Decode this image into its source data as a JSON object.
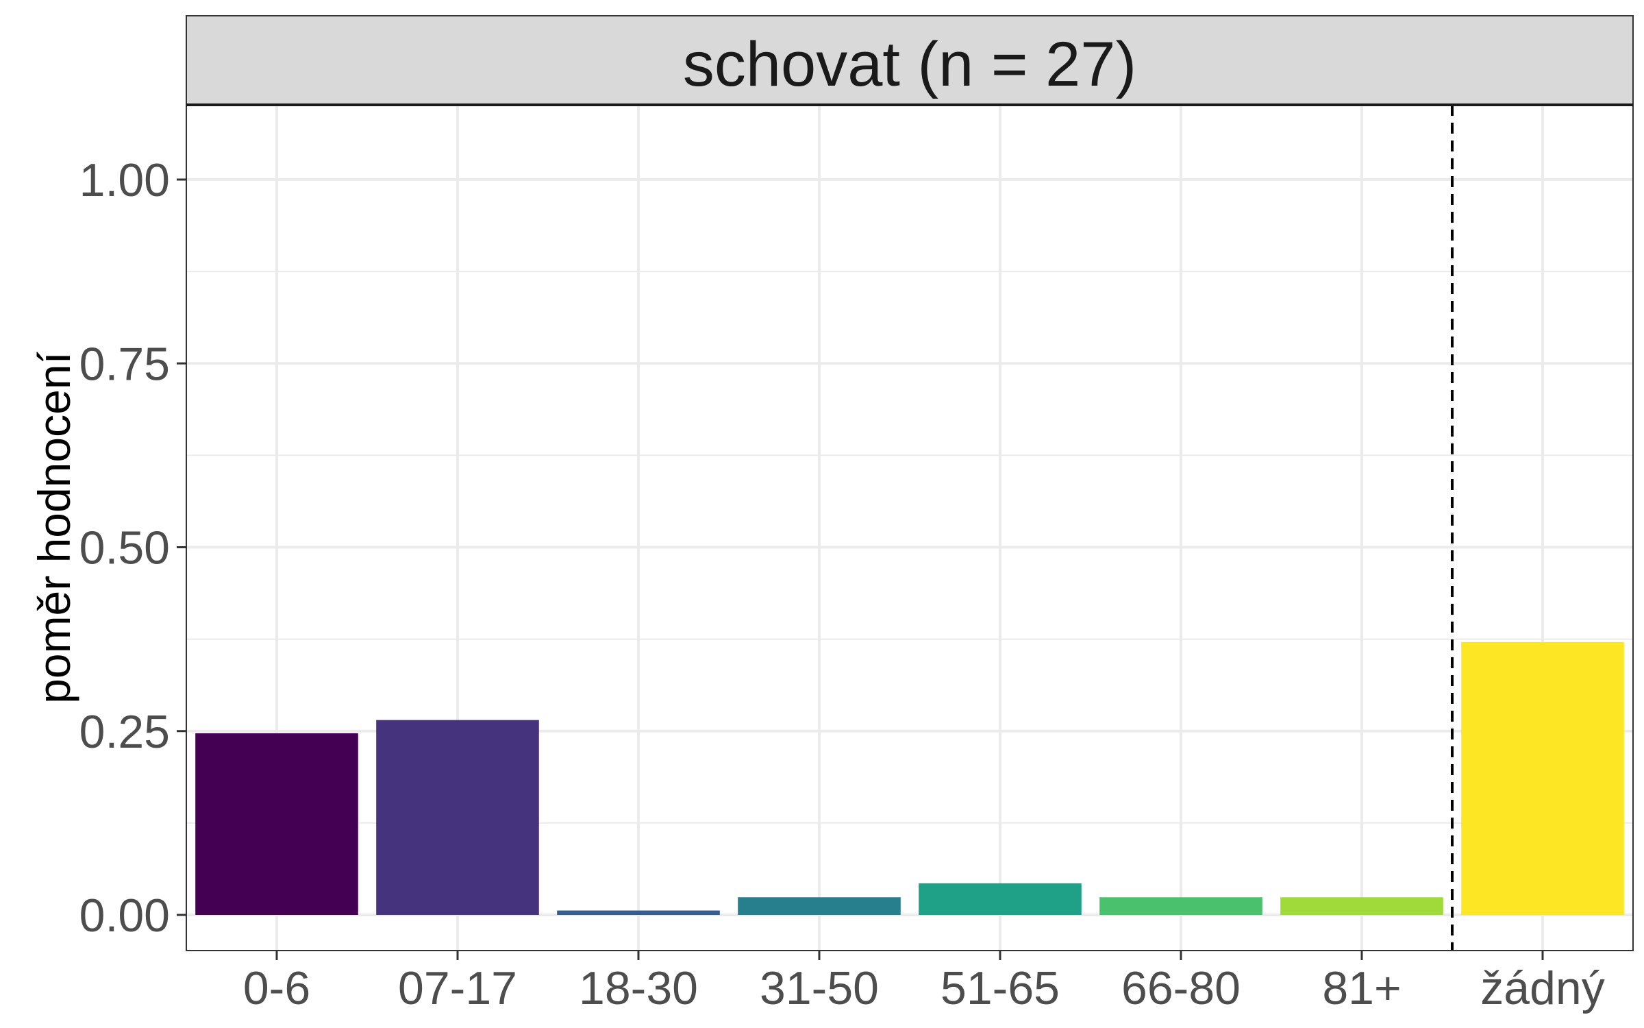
{
  "chart_data": {
    "type": "bar",
    "title": "schovat (n = 27)",
    "xlabel": "",
    "ylabel": "poměr hodnocení",
    "ylim": [
      -0.05,
      1.1
    ],
    "yticks": [
      0.0,
      0.25,
      0.5,
      0.75,
      1.0
    ],
    "ytick_labels": [
      "0.00",
      "0.25",
      "0.50",
      "0.75",
      "1.00"
    ],
    "grid": true,
    "categories": [
      "0-6",
      "07-17",
      "18-30",
      "31-50",
      "51-65",
      "66-80",
      "81+",
      "žádný"
    ],
    "values": [
      0.247,
      0.265,
      0.006,
      0.024,
      0.043,
      0.024,
      0.024,
      0.371
    ],
    "colors": [
      "#440154",
      "#46337E",
      "#365C8D",
      "#277F8E",
      "#1FA187",
      "#4AC16D",
      "#9FDA3A",
      "#FDE725"
    ],
    "separator": "dashed line between 81+ and žádný"
  }
}
